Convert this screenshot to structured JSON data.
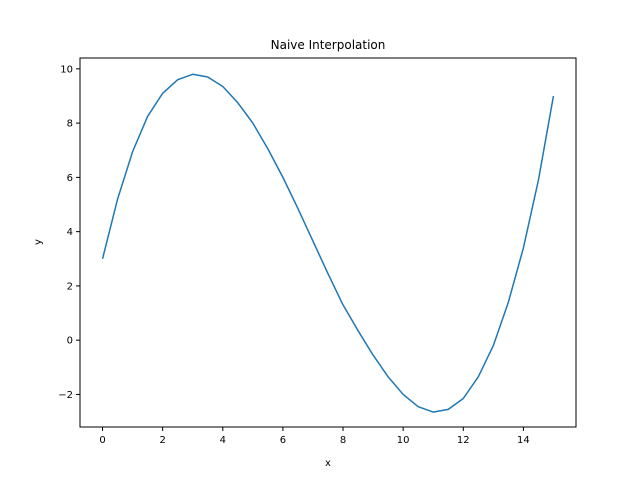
{
  "chart_data": {
    "type": "line",
    "title": "Naive Interpolation",
    "xlabel": "x",
    "ylabel": "y",
    "xlim": [
      -0.75,
      15.75
    ],
    "ylim": [
      -3.2,
      10.4
    ],
    "xticks": [
      0,
      2,
      4,
      6,
      8,
      10,
      12,
      14
    ],
    "xtick_labels": [
      "0",
      "2",
      "4",
      "6",
      "8",
      "10",
      "12",
      "14"
    ],
    "yticks": [
      -2,
      0,
      2,
      4,
      6,
      8,
      10
    ],
    "ytick_labels": [
      "−2",
      "0",
      "2",
      "4",
      "6",
      "8",
      "10"
    ],
    "grid": false,
    "colors": {
      "line": "#1f77b4",
      "axes": "#000000",
      "background": "#ffffff"
    },
    "series": [
      {
        "x": [
          0,
          0.5,
          1,
          1.5,
          2,
          2.5,
          3,
          3.5,
          4,
          4.5,
          5,
          5.5,
          6,
          6.5,
          7,
          7.5,
          8,
          8.5,
          9,
          9.5,
          10,
          10.5,
          11,
          11.5,
          12,
          12.5,
          13,
          13.5,
          14,
          14.5,
          15
        ],
        "y": [
          3.0,
          5.2,
          6.95,
          8.25,
          9.1,
          9.6,
          9.8,
          9.7,
          9.35,
          8.75,
          8.0,
          7.05,
          6.0,
          4.85,
          3.65,
          2.45,
          1.3,
          0.35,
          -0.55,
          -1.35,
          -2.0,
          -2.45,
          -2.65,
          -2.55,
          -2.15,
          -1.35,
          -0.2,
          1.4,
          3.4,
          5.9,
          9.0
        ]
      }
    ]
  }
}
